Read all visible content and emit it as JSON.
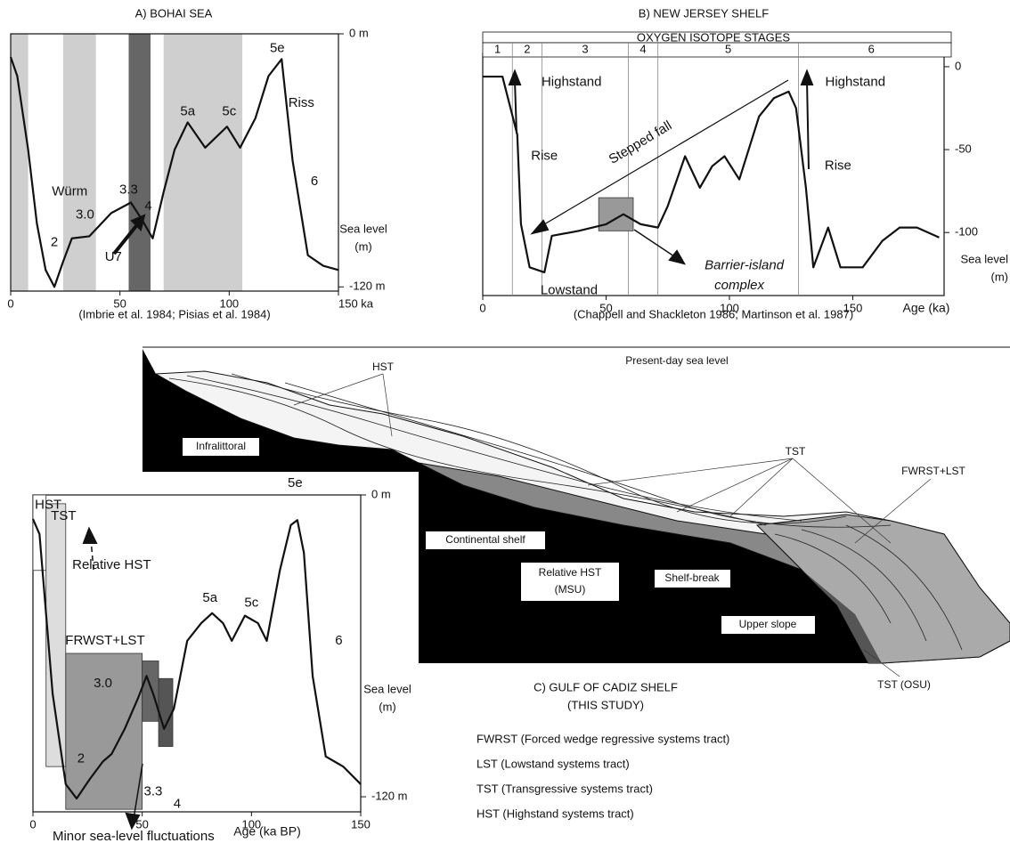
{
  "chart_data": [
    {
      "type": "line",
      "title": "A) BOHAI SEA",
      "caption": "(Imbrie et al. 1984; Pisias et al. 1984)",
      "ylabel": [
        "Sea level",
        "(m)"
      ],
      "xlim": [
        0,
        150
      ],
      "xticks": [
        0,
        50,
        100,
        {
          "value": 150,
          "label": "150 ka"
        }
      ],
      "ylim": [
        -122,
        0
      ],
      "yticks": [
        {
          "value": 0,
          "label": "0 m"
        },
        {
          "value": -120,
          "label": "-120 m"
        }
      ],
      "color": "#111",
      "bands": [
        {
          "from": 0,
          "to": 8,
          "color": "#cfcfcf"
        },
        {
          "from": 24,
          "to": 39,
          "color": "#cfcfcf"
        },
        {
          "from": 54,
          "to": 64,
          "color": "#666666"
        },
        {
          "from": 70,
          "to": 106,
          "color": "#cfcfcf"
        }
      ],
      "x": [
        0,
        3,
        8,
        12,
        16,
        20,
        24,
        28,
        36,
        46,
        55,
        60,
        65,
        70,
        75,
        81,
        89,
        95,
        99,
        105,
        112,
        118,
        124,
        129,
        136,
        143,
        150
      ],
      "values": [
        -11,
        -20,
        -55,
        -90,
        -112,
        -120,
        -108,
        -97,
        -96,
        -85,
        -80,
        -88,
        -97,
        -75,
        -55,
        -42,
        -54,
        -48,
        -44,
        -54,
        -40,
        -20,
        -12,
        -60,
        -105,
        -110,
        -112
      ],
      "annotations": [
        {
          "text": "5e",
          "x": 122,
          "y": -7
        },
        {
          "text": "Riss",
          "x": 133,
          "y": -33
        },
        {
          "text": "6",
          "x": 139,
          "y": -70
        },
        {
          "text": "5a",
          "x": 81,
          "y": -37
        },
        {
          "text": "5c",
          "x": 100,
          "y": -37
        },
        {
          "text": "Würm",
          "x": 27,
          "y": -75
        },
        {
          "text": "3.3",
          "x": 54,
          "y": -74
        },
        {
          "text": "3.0",
          "x": 34,
          "y": -86
        },
        {
          "text": "4",
          "x": 63,
          "y": -82
        },
        {
          "text": "2",
          "x": 20,
          "y": -99
        },
        {
          "text": "U7",
          "x": 47,
          "y": -106
        }
      ]
    },
    {
      "type": "line",
      "title": "B) NEW JERSEY SHELF",
      "caption": "(Chappell and Shackleton 1986; Martinson et al. 1987)",
      "xlabel": "Age (ka)",
      "ylabel": [
        "Sea level",
        "(m)"
      ],
      "xlim": [
        0,
        187
      ],
      "xticks": [
        0,
        50,
        100,
        150
      ],
      "ylim": [
        -138,
        8
      ],
      "yticks": [
        0,
        -50,
        -100
      ],
      "color": "#111",
      "stages": {
        "label": "OXYGEN ISOTOPE STAGES",
        "names": [
          "1",
          "2",
          "3",
          "4",
          "5",
          "6"
        ],
        "boundaries": [
          12,
          24,
          59,
          71,
          128
        ]
      },
      "boxes": [
        {
          "x": [
            47,
            61
          ],
          "y": [
            -99,
            -79
          ],
          "color": "#999999"
        }
      ],
      "x": [
        0,
        8,
        14,
        15.5,
        19,
        25,
        28,
        39,
        50,
        57,
        64,
        71,
        75,
        82,
        88,
        93,
        98,
        104,
        112,
        118,
        124,
        127,
        131,
        134,
        140,
        145,
        154,
        162,
        169,
        176,
        185
      ],
      "values": [
        -6,
        -6,
        -41,
        -95,
        -121,
        -124,
        -102,
        -99,
        -95,
        -89,
        -95,
        -97,
        -84,
        -54,
        -73,
        -60,
        -54,
        -68,
        -30,
        -19,
        -15,
        -25,
        -73,
        -121,
        -97,
        -121,
        -121,
        -105,
        -97,
        -97,
        -103
      ],
      "annotations": [
        {
          "text": "Highstand",
          "x": 36,
          "y": -9.5
        },
        {
          "text": "Rise",
          "x": 25,
          "y": -54
        },
        {
          "text": "Stepped fall",
          "x": 64,
          "y": -46,
          "angle": -31
        },
        {
          "text": "Lowstand",
          "x": 35,
          "y": -135
        },
        {
          "text": "Barrier-island",
          "x": 106,
          "y": -120,
          "style": "italic"
        },
        {
          "text": "complex",
          "x": 104,
          "y": -132,
          "style": "italic"
        },
        {
          "text": "Highstand",
          "x": 151,
          "y": -9.5
        },
        {
          "text": "Rise",
          "x": 144,
          "y": -60
        }
      ]
    },
    {
      "type": "line",
      "xlabel": "Age (ka BP)",
      "ylabel": [
        "Sea level",
        "(m)"
      ],
      "xlim": [
        0,
        150
      ],
      "xticks": [
        0,
        50,
        100,
        150
      ],
      "ylim": [
        -126,
        0
      ],
      "yticks": [
        {
          "value": 0,
          "label": "0 m"
        },
        {
          "value": -120,
          "label": "-120 m"
        }
      ],
      "color": "#111",
      "boxes": [
        {
          "x": [
            0,
            6
          ],
          "y": [
            -30,
            0
          ],
          "color": "#ffffff"
        },
        {
          "x": [
            6,
            15
          ],
          "y": [
            -108,
            -3.5
          ],
          "color": "#dddddd"
        },
        {
          "x": [
            15,
            50
          ],
          "y": [
            -125,
            -63
          ],
          "color": "#999999"
        },
        {
          "x": [
            50,
            57.5
          ],
          "y": [
            -90,
            -66
          ],
          "color": "#666666"
        },
        {
          "x": [
            57.5,
            64
          ],
          "y": [
            -100,
            -73
          ],
          "color": "#555555"
        }
      ],
      "x": [
        0,
        3,
        9,
        15,
        20,
        26,
        32,
        36,
        42,
        48,
        52,
        55,
        60,
        64.5,
        70.6,
        77,
        82,
        87,
        91,
        97,
        103,
        107,
        113,
        118,
        121,
        124,
        128,
        134,
        142,
        150
      ],
      "values": [
        -9.6,
        -15.6,
        -79,
        -115,
        -120.7,
        -113,
        -106,
        -103,
        -93,
        -81,
        -72,
        -79,
        -93,
        -85,
        -58,
        -51,
        -47,
        -51,
        -58,
        -48,
        -51,
        -58,
        -30,
        -12,
        -10,
        -23,
        -72,
        -104,
        -108,
        -115
      ],
      "annotations": [
        {
          "text": "HST",
          "x": 7,
          "y": -4
        },
        {
          "text": "TST",
          "x": 14,
          "y": -8.5
        },
        {
          "text": "Relative HST",
          "x": 36,
          "y": -28
        },
        {
          "text": "FRWST+LST",
          "x": 33,
          "y": -58
        },
        {
          "text": "3.0",
          "x": 32,
          "y": -75
        },
        {
          "text": "2",
          "x": 22,
          "y": -105
        },
        {
          "text": "3.3",
          "x": 55,
          "y": -118
        },
        {
          "text": "4",
          "x": 66,
          "y": -123
        },
        {
          "text": "5a",
          "x": 81,
          "y": -41
        },
        {
          "text": "5c",
          "x": 100,
          "y": -43
        },
        {
          "text": "5e",
          "x": 120,
          "y": 4.6
        },
        {
          "text": "6",
          "x": 140,
          "y": -58
        },
        {
          "text": "Minor sea-level fluctuations",
          "x": 46,
          "y": -136
        }
      ]
    }
  ],
  "cross_section": {
    "title": "C) GULF OF CADIZ SHELF",
    "subtitle": "(THIS STUDY)",
    "labels": {
      "sea_level": "Present-day sea level",
      "hst": "HST",
      "tst": "TST",
      "fwrst_lst": "FWRST+LST",
      "infralittoral": "Infralittoral",
      "continental_shelf": "Continental shelf",
      "relative_hst": "Relative HST",
      "msu": "(MSU)",
      "shelf_break": "Shelf-break",
      "upper_slope": "Upper slope",
      "tst_osu": "TST (OSU)"
    },
    "legend": [
      "FWRST (Forced wedge regressive systems tract)",
      "LST (Lowstand systems tract)",
      "TST (Transgressive systems tract)",
      "HST (Highstand systems tract)"
    ]
  }
}
